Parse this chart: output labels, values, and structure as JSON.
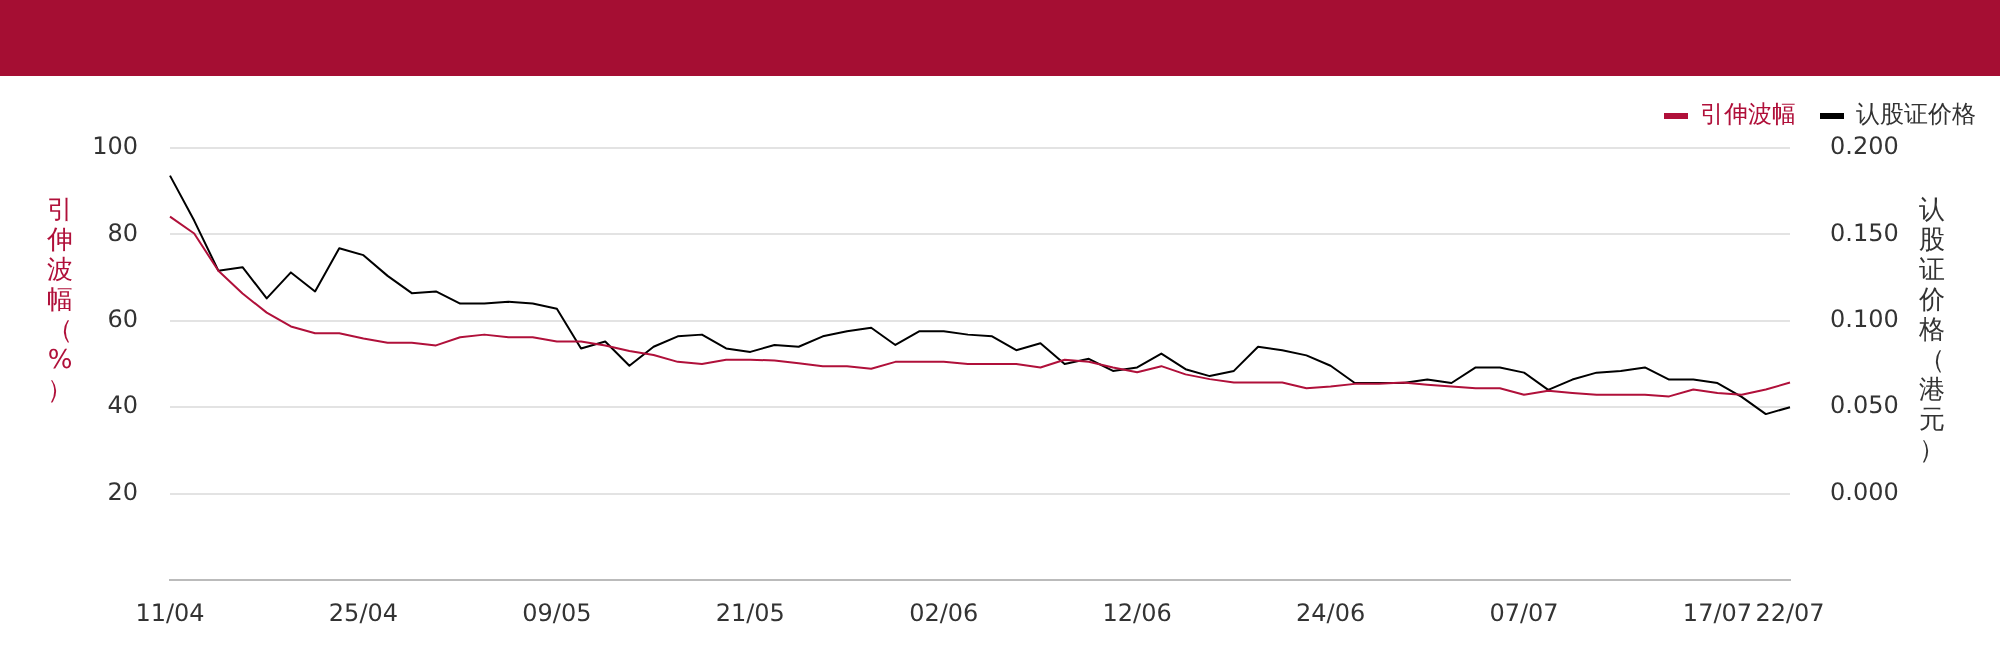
{
  "chart_data": {
    "type": "line",
    "categories": [
      "11/04",
      null,
      null,
      null,
      null,
      null,
      null,
      null,
      "25/04",
      null,
      null,
      null,
      null,
      null,
      null,
      null,
      "09/05",
      null,
      null,
      null,
      null,
      null,
      null,
      null,
      "21/05",
      null,
      null,
      null,
      null,
      null,
      null,
      null,
      "02/06",
      null,
      null,
      null,
      null,
      null,
      null,
      null,
      "12/06",
      null,
      null,
      null,
      null,
      null,
      null,
      null,
      "24/06",
      null,
      null,
      null,
      null,
      null,
      null,
      null,
      "07/07",
      null,
      null,
      null,
      null,
      null,
      null,
      null,
      "17/07",
      null,
      null,
      "22/07"
    ],
    "series": [
      {
        "name": "引伸波幅",
        "color": "#b0103a",
        "values": [
          84.1,
          80.2,
          71.6,
          66.3,
          61.9,
          58.7,
          57.1,
          57.1,
          55.9,
          54.9,
          54.9,
          54.3,
          56.2,
          56.8,
          56.2,
          56.2,
          55.2,
          55.2,
          54.3,
          53.0,
          52.1,
          50.5,
          50.0,
          51.0,
          51.0,
          50.8,
          50.2,
          49.5,
          49.5,
          48.9,
          50.5,
          50.5,
          50.5,
          50.0,
          50.0,
          50.0,
          49.2,
          51.0,
          50.5,
          49.2,
          48.1,
          49.5,
          47.6,
          46.5,
          45.7,
          45.7,
          45.7,
          44.4,
          44.8,
          45.4,
          45.4,
          45.7,
          45.2,
          44.8,
          44.4,
          44.4,
          42.9,
          43.8,
          43.3,
          42.9,
          42.9,
          42.9,
          42.5,
          44.1,
          43.3,
          42.9,
          44.1,
          45.7
        ]
      },
      {
        "name": "认股证价格",
        "color": "#000000",
        "axis": "y2",
        "values": [
          0.184,
          0.158,
          0.129,
          0.131,
          0.113,
          0.128,
          0.117,
          0.142,
          0.138,
          0.126,
          0.116,
          0.117,
          0.11,
          0.11,
          0.111,
          0.11,
          0.107,
          0.084,
          0.088,
          0.074,
          0.085,
          0.091,
          0.092,
          0.084,
          0.082,
          0.086,
          0.085,
          0.091,
          0.094,
          0.096,
          0.086,
          0.094,
          0.094,
          0.092,
          0.091,
          0.083,
          0.087,
          0.075,
          0.078,
          0.071,
          0.073,
          0.081,
          0.072,
          0.068,
          0.071,
          0.085,
          0.083,
          0.08,
          0.074,
          0.064,
          0.064,
          0.064,
          0.066,
          0.064,
          0.073,
          0.073,
          0.07,
          0.06,
          0.066,
          0.07,
          0.071,
          0.073,
          0.066,
          0.066,
          0.064,
          0.056,
          0.046,
          0.05
        ]
      }
    ],
    "ylabel": "引伸波幅（%）",
    "y2label": "认股证价格（港元）",
    "ylim": [
      0,
      100
    ],
    "yticks": [
      20,
      40,
      60,
      80,
      100
    ],
    "y2lim": [
      -0.05,
      0.2
    ],
    "y2ticks": [
      {
        "value": 0,
        "label": "0.000"
      },
      {
        "value": 0.05,
        "label": "0.050"
      },
      {
        "value": 0.1,
        "label": "0.100"
      },
      {
        "value": 0.15,
        "label": "0.150"
      },
      {
        "value": 0.2,
        "label": "0.200"
      }
    ],
    "grid": "y",
    "legend": "top right",
    "marker": "none",
    "line_style": "solid"
  }
}
